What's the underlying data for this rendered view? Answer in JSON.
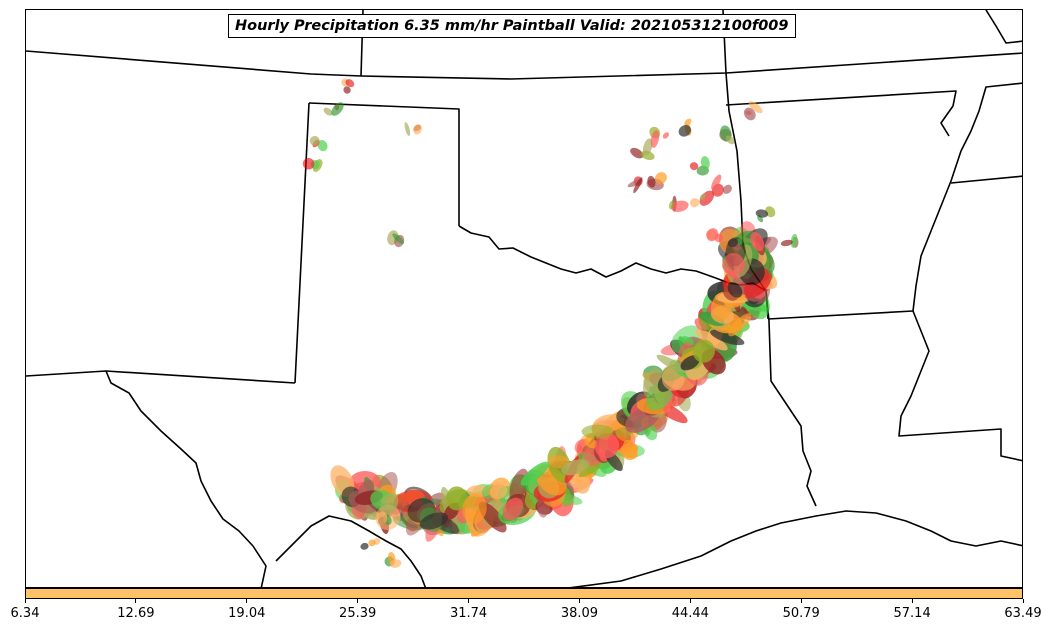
{
  "title": "Hourly Precipitation 6.35 mm/hr Paintball Valid: 202105312100f009",
  "colorbar": {
    "color": "#ffc266",
    "ticks": [
      "6.34",
      "12.69",
      "19.04",
      "25.39",
      "31.74",
      "38.09",
      "44.44",
      "50.79",
      "57.14",
      "63.49"
    ]
  },
  "paintball_colors": [
    "#ff8c00",
    "#ffa64d",
    "#e60000",
    "#ff4040",
    "#800000",
    "#a04040",
    "#80a000",
    "#9aa040",
    "#2ec82e",
    "#1a8c1a",
    "#0a0a0a"
  ]
}
